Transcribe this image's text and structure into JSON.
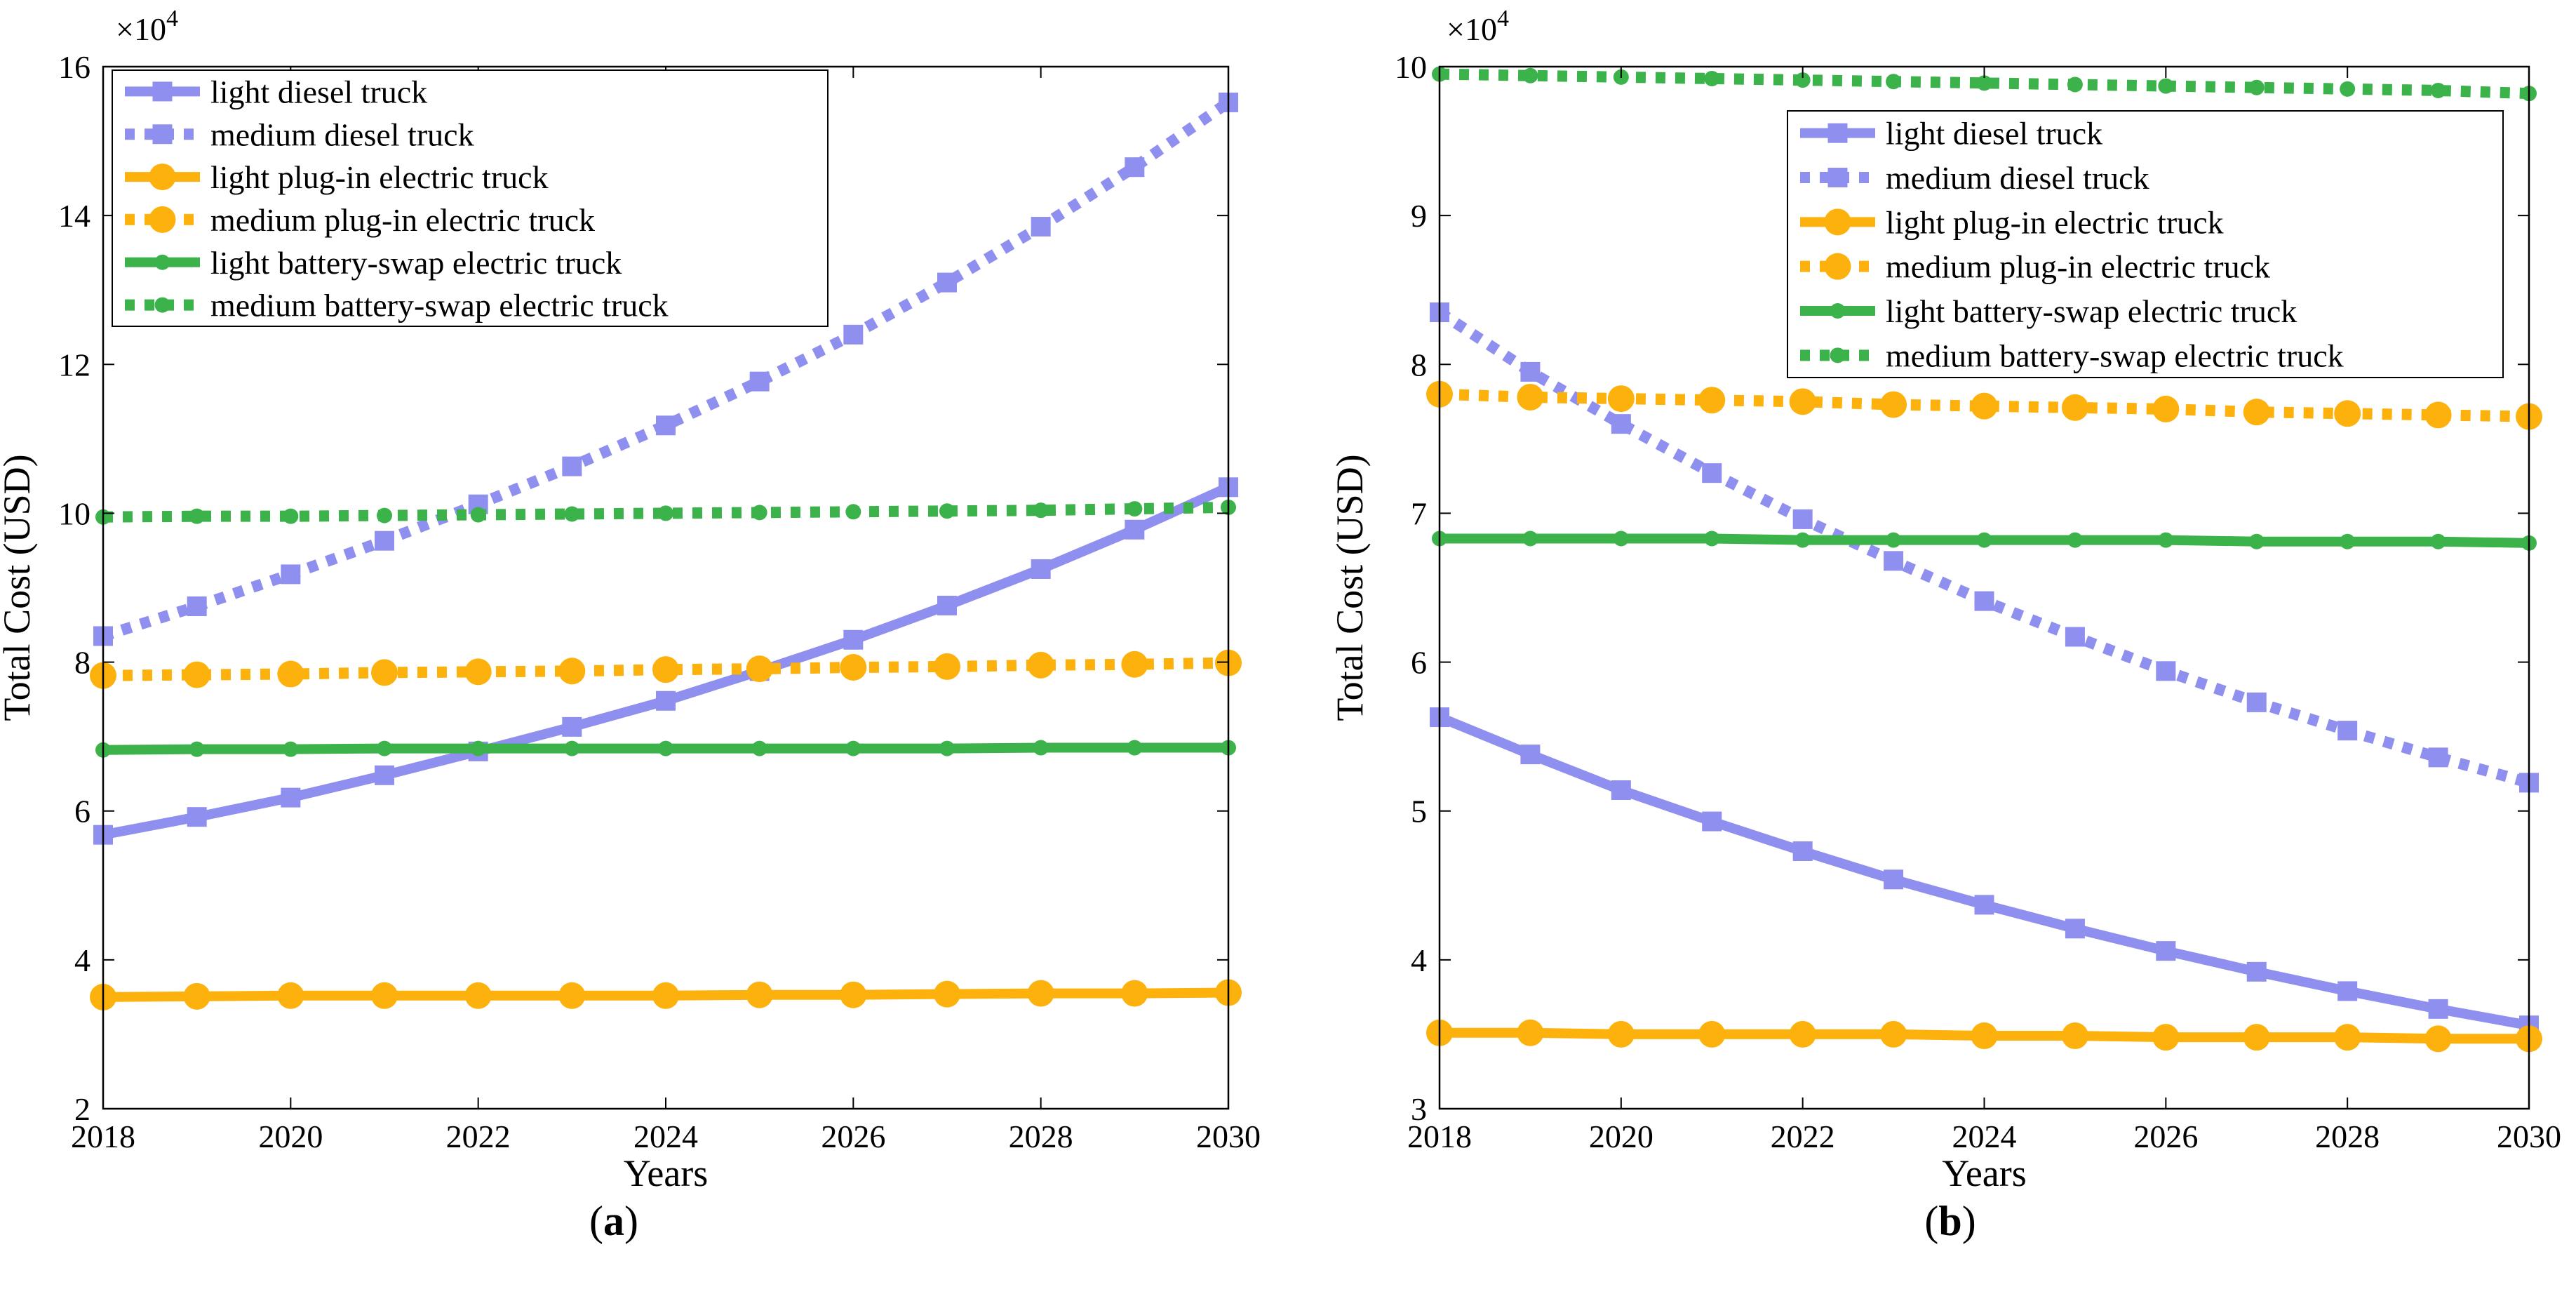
{
  "colors": {
    "diesel": "#8f8ff0",
    "plugin": "#fdb10c",
    "swap": "#3cb34a",
    "axis": "#000000"
  },
  "chart_data": [
    {
      "type": "line",
      "panel_label": "a",
      "title": "",
      "xlabel": "Years",
      "ylabel": "Total Cost (USD)",
      "exponent_label": "×10",
      "exponent_power": "4",
      "xlim": [
        2018,
        2030
      ],
      "ylim": [
        2,
        16
      ],
      "xticks": [
        2018,
        2020,
        2022,
        2024,
        2026,
        2028,
        2030
      ],
      "yticks": [
        2,
        4,
        6,
        8,
        10,
        12,
        14,
        16
      ],
      "legend_position": "top-left",
      "x": [
        2018,
        2019,
        2020,
        2021,
        2022,
        2023,
        2024,
        2025,
        2026,
        2027,
        2028,
        2029,
        2030
      ],
      "series": [
        {
          "name": "light diesel truck",
          "color_key": "diesel",
          "style": "solid",
          "marker": "square",
          "values": [
            5.68,
            5.92,
            6.18,
            6.48,
            6.8,
            7.13,
            7.48,
            7.88,
            8.3,
            8.76,
            9.25,
            9.78,
            10.35
          ]
        },
        {
          "name": "medium diesel truck",
          "color_key": "diesel",
          "style": "dotted",
          "marker": "square",
          "values": [
            8.35,
            8.75,
            9.18,
            9.63,
            10.12,
            10.63,
            11.18,
            11.77,
            12.4,
            13.1,
            13.85,
            14.65,
            15.52
          ]
        },
        {
          "name": "light plug-in electric truck",
          "color_key": "plugin",
          "style": "solid",
          "marker": "circle",
          "values": [
            3.5,
            3.51,
            3.52,
            3.52,
            3.52,
            3.52,
            3.52,
            3.53,
            3.53,
            3.54,
            3.55,
            3.55,
            3.56
          ]
        },
        {
          "name": "medium plug-in electric truck",
          "color_key": "plugin",
          "style": "dotted",
          "marker": "circle",
          "values": [
            7.82,
            7.83,
            7.84,
            7.86,
            7.87,
            7.88,
            7.9,
            7.91,
            7.93,
            7.94,
            7.96,
            7.97,
            7.99
          ]
        },
        {
          "name": "light battery-swap electric truck",
          "color_key": "swap",
          "style": "solid",
          "marker": "dot",
          "values": [
            6.82,
            6.83,
            6.83,
            6.84,
            6.84,
            6.84,
            6.84,
            6.84,
            6.84,
            6.84,
            6.85,
            6.85,
            6.85
          ]
        },
        {
          "name": "medium battery-swap electric truck",
          "color_key": "swap",
          "style": "dotted",
          "marker": "dot",
          "values": [
            9.95,
            9.96,
            9.96,
            9.97,
            9.98,
            9.99,
            10.0,
            10.01,
            10.02,
            10.03,
            10.04,
            10.06,
            10.08
          ]
        }
      ]
    },
    {
      "type": "line",
      "panel_label": "b",
      "title": "",
      "xlabel": "Years",
      "ylabel": "Total Cost (USD)",
      "exponent_label": "×10",
      "exponent_power": "4",
      "xlim": [
        2018,
        2030
      ],
      "ylim": [
        3,
        10
      ],
      "xticks": [
        2018,
        2020,
        2022,
        2024,
        2026,
        2028,
        2030
      ],
      "yticks": [
        3,
        4,
        5,
        6,
        7,
        8,
        9,
        10
      ],
      "legend_position": "top-right",
      "x": [
        2018,
        2019,
        2020,
        2021,
        2022,
        2023,
        2024,
        2025,
        2026,
        2027,
        2028,
        2029,
        2030
      ],
      "series": [
        {
          "name": "light diesel truck",
          "color_key": "diesel",
          "style": "solid",
          "marker": "square",
          "values": [
            5.63,
            5.38,
            5.14,
            4.93,
            4.73,
            4.54,
            4.37,
            4.21,
            4.06,
            3.92,
            3.79,
            3.67,
            3.56
          ]
        },
        {
          "name": "medium diesel truck",
          "color_key": "diesel",
          "style": "dotted",
          "marker": "square",
          "values": [
            8.35,
            7.95,
            7.6,
            7.27,
            6.96,
            6.68,
            6.41,
            6.17,
            5.94,
            5.73,
            5.54,
            5.36,
            5.19
          ]
        },
        {
          "name": "light plug-in electric truck",
          "color_key": "plugin",
          "style": "solid",
          "marker": "circle",
          "values": [
            3.51,
            3.51,
            3.5,
            3.5,
            3.5,
            3.5,
            3.49,
            3.49,
            3.48,
            3.48,
            3.48,
            3.47,
            3.47
          ]
        },
        {
          "name": "medium plug-in electric truck",
          "color_key": "plugin",
          "style": "dotted",
          "marker": "circle",
          "values": [
            7.8,
            7.78,
            7.77,
            7.76,
            7.75,
            7.73,
            7.72,
            7.71,
            7.7,
            7.68,
            7.67,
            7.66,
            7.65
          ]
        },
        {
          "name": "light battery-swap electric truck",
          "color_key": "swap",
          "style": "solid",
          "marker": "dot",
          "values": [
            6.83,
            6.83,
            6.83,
            6.83,
            6.82,
            6.82,
            6.82,
            6.82,
            6.82,
            6.81,
            6.81,
            6.81,
            6.8
          ]
        },
        {
          "name": "medium battery-swap electric truck",
          "color_key": "swap",
          "style": "dotted",
          "marker": "dot",
          "values": [
            9.95,
            9.94,
            9.93,
            9.92,
            9.91,
            9.9,
            9.89,
            9.88,
            9.87,
            9.86,
            9.85,
            9.84,
            9.82
          ]
        }
      ]
    }
  ]
}
